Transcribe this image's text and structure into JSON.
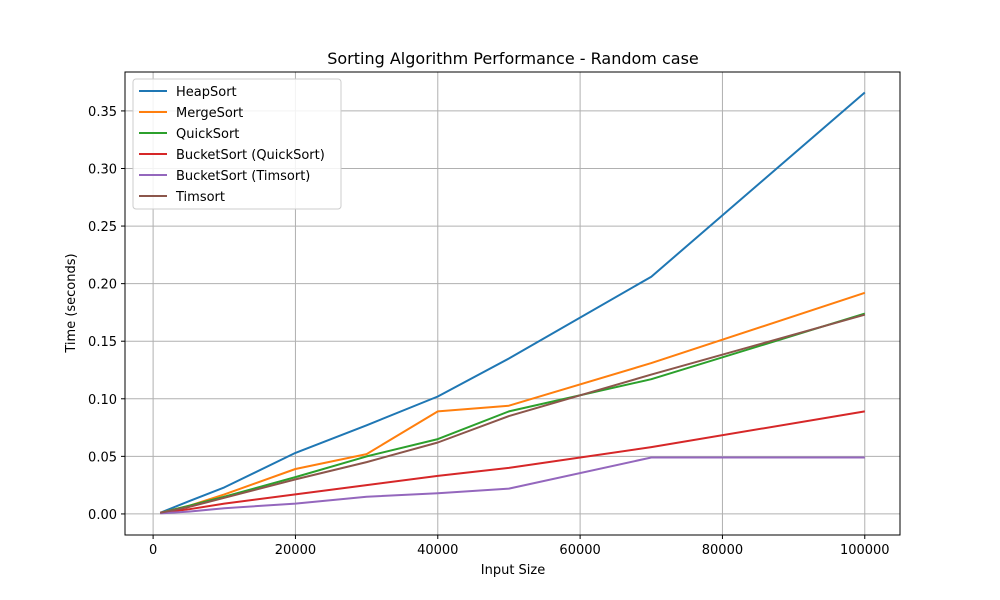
{
  "chart_data": {
    "type": "line",
    "title": "Sorting Algorithm Performance - Random case",
    "xlabel": "Input Size",
    "ylabel": "Time (seconds)",
    "x": [
      1000,
      5000,
      10000,
      20000,
      30000,
      40000,
      50000,
      70000,
      100000
    ],
    "xlim": [
      -3950,
      104950
    ],
    "ylim": [
      -0.0183,
      0.3838
    ],
    "xticks": [
      0,
      20000,
      40000,
      60000,
      80000,
      100000
    ],
    "yticks": [
      0.0,
      0.05,
      0.1,
      0.15,
      0.2,
      0.25,
      0.3,
      0.35
    ],
    "grid": true,
    "legend_position": "top-left",
    "series": [
      {
        "name": "HeapSort",
        "color": "#1f77b4",
        "values": [
          0.001,
          0.011,
          0.023,
          0.053,
          0.077,
          0.102,
          0.135,
          0.206,
          0.366
        ]
      },
      {
        "name": "MergeSort",
        "color": "#ff7f0e",
        "values": [
          0.001,
          0.007,
          0.017,
          0.039,
          0.052,
          0.089,
          0.094,
          0.131,
          0.192
        ]
      },
      {
        "name": "QuickSort",
        "color": "#2ca02c",
        "values": [
          0.001,
          0.007,
          0.015,
          0.032,
          0.05,
          0.065,
          0.089,
          0.117,
          0.174
        ]
      },
      {
        "name": "BucketSort (QuickSort)",
        "color": "#d62728",
        "values": [
          0.001,
          0.004,
          0.009,
          0.017,
          0.025,
          0.033,
          0.04,
          0.058,
          0.089
        ]
      },
      {
        "name": "BucketSort (Timsort)",
        "color": "#9467bd",
        "values": [
          0.0005,
          0.002,
          0.005,
          0.009,
          0.015,
          0.018,
          0.022,
          0.049,
          0.049
        ]
      },
      {
        "name": "Timsort",
        "color": "#8c564b",
        "values": [
          0.001,
          0.006,
          0.014,
          0.03,
          0.045,
          0.062,
          0.085,
          0.121,
          0.173
        ]
      }
    ]
  }
}
